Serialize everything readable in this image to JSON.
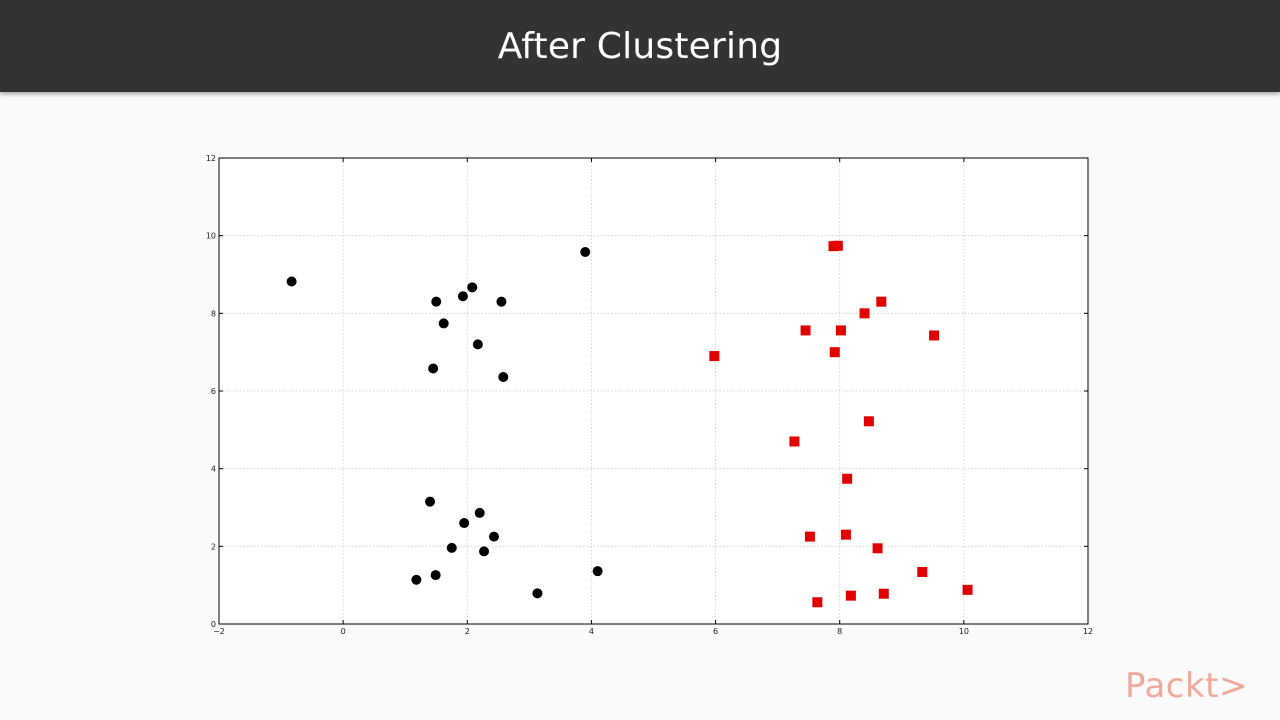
{
  "header": {
    "title": "After Clustering"
  },
  "brand": {
    "logo_text": "Packt>",
    "color": "#f0a89a"
  },
  "colors": {
    "cluster_1": "#000000",
    "cluster_2": "#e00000",
    "grid": "#cccccc"
  },
  "chart_data": {
    "type": "scatter",
    "title": "",
    "xlabel": "",
    "ylabel": "",
    "xlim": [
      -2,
      12
    ],
    "ylim": [
      0,
      12
    ],
    "xticks": [
      -2,
      0,
      2,
      4,
      6,
      8,
      10,
      12
    ],
    "yticks": [
      0,
      2,
      4,
      6,
      8,
      10,
      12
    ],
    "grid": true,
    "series": [
      {
        "marker": "circle",
        "color": "#000000",
        "points": [
          [
            -0.83,
            8.82
          ],
          [
            3.9,
            9.58
          ],
          [
            1.5,
            8.3
          ],
          [
            1.93,
            8.44
          ],
          [
            2.08,
            8.67
          ],
          [
            2.55,
            8.3
          ],
          [
            1.62,
            7.74
          ],
          [
            2.17,
            7.2
          ],
          [
            1.45,
            6.58
          ],
          [
            2.58,
            6.36
          ],
          [
            1.4,
            3.15
          ],
          [
            2.2,
            2.86
          ],
          [
            1.95,
            2.6
          ],
          [
            2.43,
            2.25
          ],
          [
            1.75,
            1.96
          ],
          [
            2.27,
            1.87
          ],
          [
            1.18,
            1.14
          ],
          [
            1.49,
            1.26
          ],
          [
            3.13,
            0.79
          ],
          [
            4.1,
            1.36
          ]
        ]
      },
      {
        "marker": "square",
        "color": "#e00000",
        "points": [
          [
            7.9,
            9.73
          ],
          [
            7.97,
            9.74
          ],
          [
            8.67,
            8.3
          ],
          [
            8.4,
            8.0
          ],
          [
            7.45,
            7.56
          ],
          [
            8.02,
            7.56
          ],
          [
            9.52,
            7.43
          ],
          [
            7.92,
            7.0
          ],
          [
            5.98,
            6.9
          ],
          [
            8.47,
            5.22
          ],
          [
            7.27,
            4.7
          ],
          [
            8.12,
            3.74
          ],
          [
            7.52,
            2.25
          ],
          [
            8.1,
            2.3
          ],
          [
            8.61,
            1.95
          ],
          [
            9.33,
            1.34
          ],
          [
            10.06,
            0.88
          ],
          [
            8.71,
            0.78
          ],
          [
            8.18,
            0.73
          ],
          [
            7.64,
            0.56
          ]
        ]
      }
    ]
  }
}
